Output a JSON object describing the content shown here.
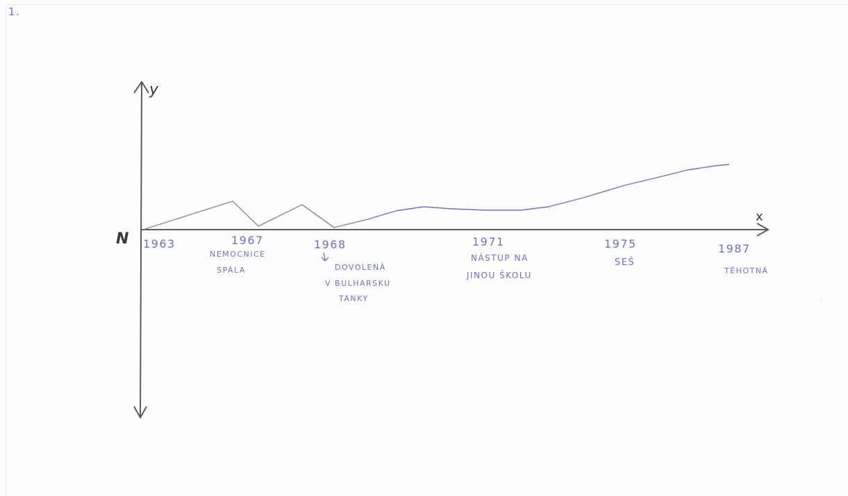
{
  "page_number": "1.",
  "axes": {
    "y_label": "y",
    "x_label": "x",
    "origin_label": "N"
  },
  "events": [
    {
      "year": "1963",
      "label_lines": []
    },
    {
      "year": "1967",
      "label_lines": [
        "NEMOCNICE",
        "SPÁLA"
      ]
    },
    {
      "year": "1968",
      "label_lines": [
        "DOVOLENÁ",
        "V BULHARSKU",
        "TANKY"
      ]
    },
    {
      "year": "1971",
      "label_lines": [
        "NÁSTUP NA",
        "JINOU ŠKOLU"
      ]
    },
    {
      "year": "1975",
      "label_lines": [
        "SEŠ"
      ]
    },
    {
      "year": "1987",
      "label_lines": [
        "TĚHOTNÁ"
      ]
    }
  ],
  "colors": {
    "pencil": "#5a5a5a",
    "pen": "#6a6fd0"
  }
}
